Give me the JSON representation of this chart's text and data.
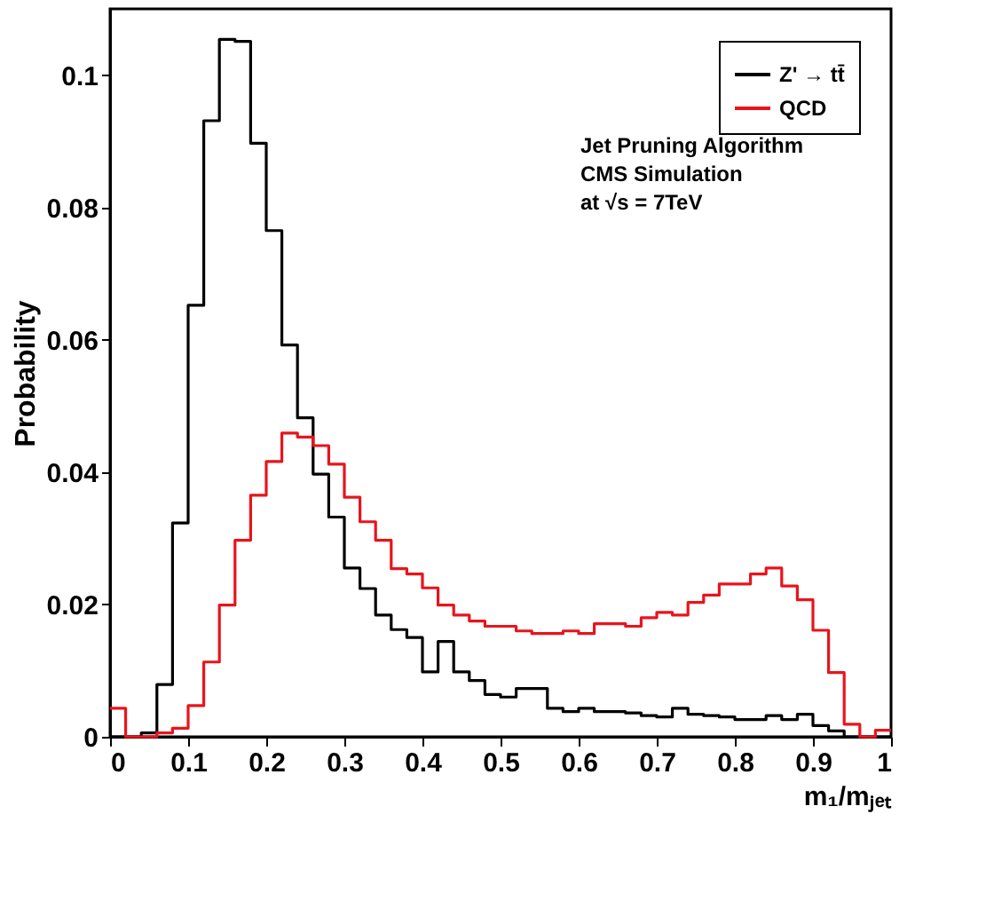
{
  "chart_data": {
    "type": "histogram",
    "xlabel": "m₁/mⱼₑₜ",
    "ylabel": "Probability",
    "bins": [
      0,
      0.02,
      0.04,
      0.06,
      0.08,
      0.1,
      0.12,
      0.14,
      0.16,
      0.18,
      0.2,
      0.22,
      0.24,
      0.26,
      0.28,
      0.3,
      0.32,
      0.34,
      0.36,
      0.38,
      0.4,
      0.42,
      0.44,
      0.46,
      0.48,
      0.5,
      0.52,
      0.54,
      0.56,
      0.58,
      0.6,
      0.62,
      0.64,
      0.66,
      0.68,
      0.7,
      0.72,
      0.74,
      0.76,
      0.78,
      0.8,
      0.82,
      0.84,
      0.86,
      0.88,
      0.9,
      0.92,
      0.94,
      0.96,
      0.98,
      1.0
    ],
    "series": [
      {
        "name": "Z' → tt̄",
        "color": "#000000",
        "values": [
          0,
          0,
          0.0006,
          0.0079,
          0.0323,
          0.0652,
          0.0931,
          0.1054,
          0.1051,
          0.0897,
          0.0765,
          0.0592,
          0.0482,
          0.0397,
          0.0332,
          0.0255,
          0.0224,
          0.0184,
          0.0162,
          0.015,
          0.0098,
          0.0144,
          0.0098,
          0.0085,
          0.0064,
          0.006,
          0.0073,
          0.0073,
          0.0043,
          0.0038,
          0.0043,
          0.0038,
          0.0038,
          0.0036,
          0.0032,
          0.003,
          0.0043,
          0.0034,
          0.0032,
          0.003,
          0.0026,
          0.0026,
          0.0032,
          0.0026,
          0.0034,
          0.0017,
          0.0009,
          0,
          0,
          0
        ]
      },
      {
        "name": "QCD",
        "color": "#e8141c",
        "values": [
          0.0043,
          0,
          0,
          0.0006,
          0.0013,
          0.0047,
          0.0113,
          0.0199,
          0.0297,
          0.0365,
          0.0416,
          0.0459,
          0.0453,
          0.044,
          0.0412,
          0.0362,
          0.0325,
          0.0297,
          0.0254,
          0.0246,
          0.0225,
          0.0199,
          0.0184,
          0.0175,
          0.0167,
          0.0167,
          0.016,
          0.0156,
          0.0156,
          0.016,
          0.0156,
          0.0171,
          0.0171,
          0.0167,
          0.018,
          0.0188,
          0.0184,
          0.0203,
          0.0214,
          0.0231,
          0.0231,
          0.0246,
          0.0255,
          0.0228,
          0.0207,
          0.0161,
          0.0097,
          0.0019,
          0,
          0.001
        ]
      }
    ],
    "xlim": [
      0,
      1
    ],
    "xticks": [
      0,
      0.1,
      0.2,
      0.3,
      0.4,
      0.5,
      0.6,
      0.7,
      0.8,
      0.9,
      1
    ],
    "ylim": [
      0,
      0.11
    ],
    "yticks": [
      0,
      0.02,
      0.04,
      0.06,
      0.08,
      0.1
    ],
    "legend": "top right",
    "grid": false,
    "annotations": [
      "Jet Pruning Algorithm",
      "CMS Simulation",
      "at √s = 7TeV"
    ]
  }
}
